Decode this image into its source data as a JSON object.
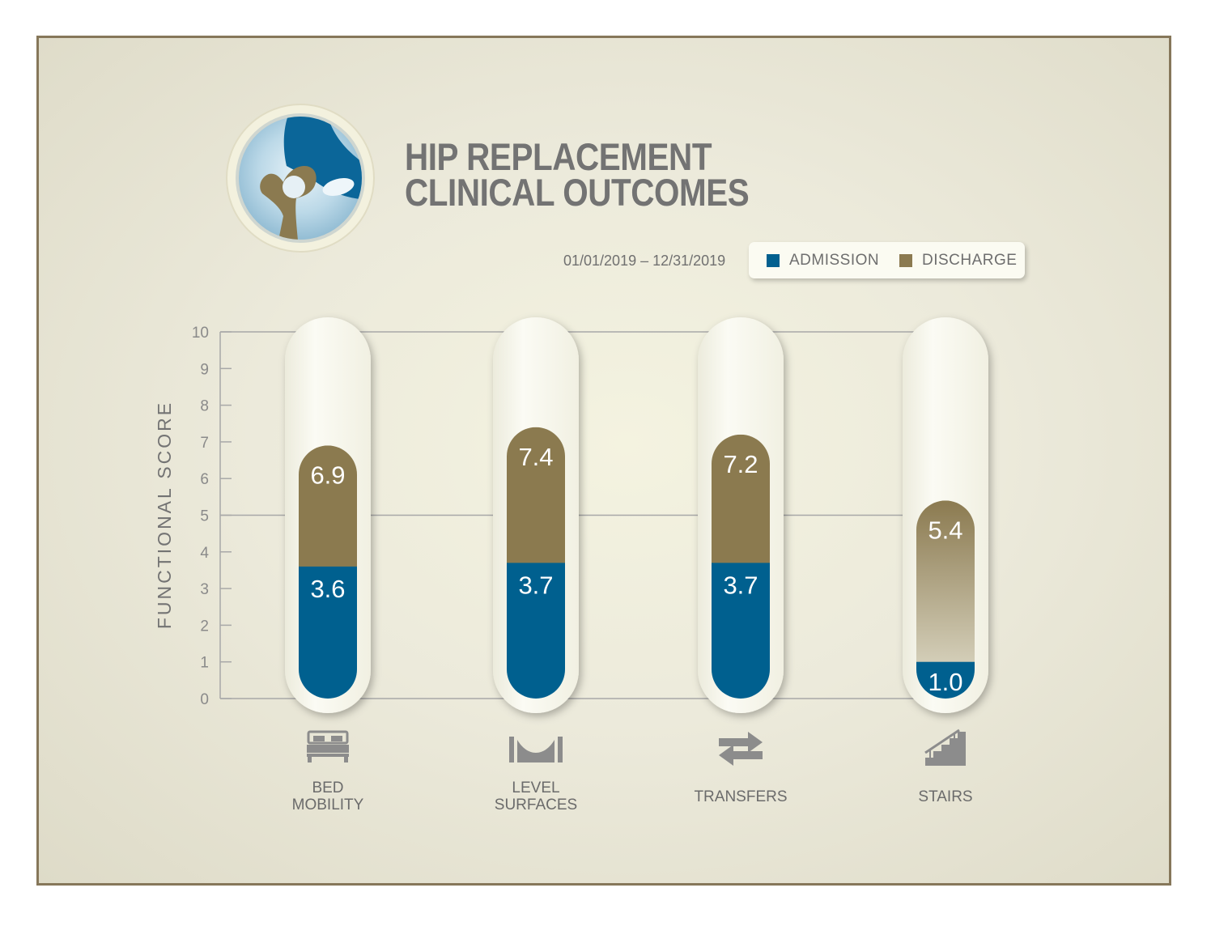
{
  "header": {
    "title_line1": "HIP REPLACEMENT",
    "title_line2": "CLINICAL OUTCOMES",
    "date_range": "01/01/2019 – 12/31/2019"
  },
  "legend": {
    "admission_label": "ADMISSION",
    "discharge_label": "DISCHARGE"
  },
  "colors": {
    "admission": "#02608f",
    "discharge": "#8b7a50",
    "frame": "#86775a",
    "pill": "#f8f8ee",
    "grid": "#a8a8a8",
    "text": "#737373"
  },
  "icons": {
    "logo": "hip-joint-icon",
    "bed_mobility": "bed-icon",
    "level_surfaces": "level-surface-icon",
    "transfers": "transfer-arrows-icon",
    "stairs": "stairs-icon"
  },
  "chart_data": {
    "type": "bar",
    "title": "HIP REPLACEMENT CLINICAL OUTCOMES",
    "ylabel": "FUNCTIONAL SCORE",
    "xlabel": "",
    "ylim": [
      0,
      10
    ],
    "yticks": [
      0,
      1,
      2,
      3,
      4,
      5,
      6,
      7,
      8,
      9,
      10
    ],
    "grid": "major lines at 5 and 10",
    "legend_position": "top-right",
    "categories": [
      "BED\nMOBILITY",
      "LEVEL\nSURFACES",
      "TRANSFERS",
      "STAIRS"
    ],
    "series": [
      {
        "name": "ADMISSION",
        "values": [
          3.6,
          3.7,
          3.7,
          1.0
        ],
        "labels": [
          "3.6",
          "3.7",
          "3.7",
          "1.0"
        ]
      },
      {
        "name": "DISCHARGE",
        "values": [
          6.9,
          7.4,
          7.2,
          5.4
        ],
        "labels": [
          "6.9",
          "7.4",
          "7.2",
          "5.4"
        ]
      }
    ]
  }
}
